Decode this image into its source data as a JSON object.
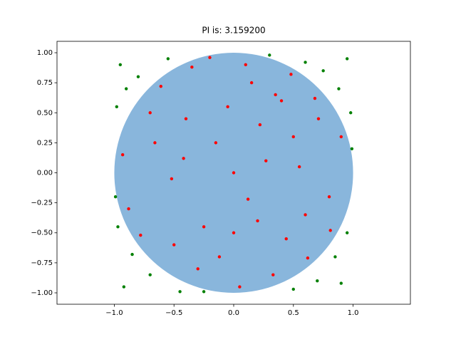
{
  "chart_data": {
    "type": "scatter",
    "title": "PI is: 3.159200",
    "xlim": [
      -1.48,
      1.48
    ],
    "ylim": [
      -1.095,
      1.095
    ],
    "xticks": [
      {
        "value": -1.0,
        "label": "−1.0"
      },
      {
        "value": -0.5,
        "label": "−0.5"
      },
      {
        "value": 0.0,
        "label": "0.0"
      },
      0.5,
      {
        "value": 1.0,
        "label": "1.0"
      }
    ],
    "yticks": [
      {
        "value": -1.0,
        "label": "−1.00"
      },
      {
        "value": -0.75,
        "label": "−0.75"
      },
      {
        "value": -0.5,
        "label": "−0.50"
      },
      {
        "value": -0.25,
        "label": "−0.25"
      },
      {
        "value": 0.0,
        "label": "0.00"
      },
      0.25,
      {
        "value": 0.5,
        "label": "0.50"
      },
      0.75,
      {
        "value": 1.0,
        "label": "1.00"
      }
    ],
    "grid": false,
    "circle": {
      "center": [
        0,
        0
      ],
      "radius": 1,
      "color": "#89b6dc"
    },
    "series": [
      {
        "color": "#ff0000",
        "x": [
          0.1,
          -0.3,
          0.5,
          -0.7,
          0.2,
          0.8,
          -0.5,
          0.0,
          0.35,
          -0.15,
          0.62,
          -0.42,
          0.71,
          -0.88,
          0.05,
          0.44,
          -0.61,
          0.27,
          -0.05,
          0.9,
          -0.93,
          0.15,
          -0.25,
          0.55,
          -0.78,
          0.33,
          0.68,
          -0.35,
          0.12,
          -0.52,
          0.81,
          -0.12,
          0.48,
          -0.66,
          0.22,
          0.0,
          -0.4,
          0.6,
          -0.2,
          0.4
        ],
        "y": [
          0.9,
          -0.8,
          0.3,
          0.5,
          -0.4,
          -0.2,
          -0.6,
          0.0,
          0.65,
          0.25,
          -0.71,
          0.12,
          0.45,
          -0.3,
          -0.95,
          -0.55,
          0.72,
          0.1,
          0.55,
          0.3,
          0.15,
          0.75,
          -0.45,
          0.05,
          -0.52,
          -0.85,
          0.62,
          0.88,
          -0.22,
          -0.05,
          -0.48,
          -0.7,
          0.82,
          0.25,
          0.4,
          -0.5,
          0.45,
          -0.35,
          0.96,
          0.6
        ]
      },
      {
        "color": "#008000",
        "x": [
          0.95,
          -0.95,
          0.9,
          -0.92,
          0.75,
          -0.8,
          0.85,
          -0.7,
          0.98,
          -0.98,
          0.6,
          -0.55,
          0.95,
          -0.97,
          0.5,
          -0.45,
          0.88,
          -0.9,
          0.7,
          -0.85,
          0.99,
          -0.99,
          0.3,
          -0.25
        ],
        "y": [
          0.95,
          0.9,
          -0.92,
          -0.95,
          0.85,
          0.8,
          -0.7,
          -0.85,
          0.5,
          0.55,
          0.92,
          0.95,
          -0.5,
          -0.45,
          -0.97,
          -0.99,
          0.7,
          0.7,
          -0.9,
          -0.68,
          0.2,
          -0.2,
          0.98,
          -0.99
        ]
      }
    ]
  }
}
